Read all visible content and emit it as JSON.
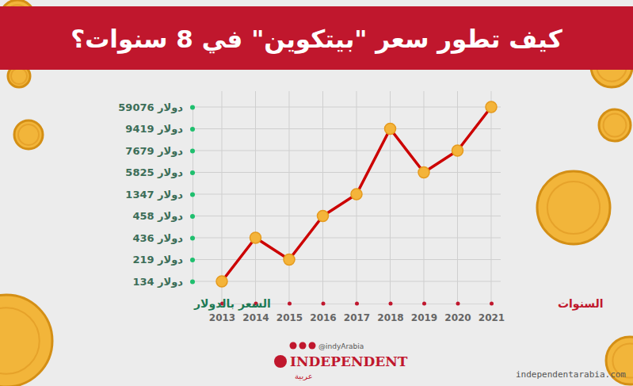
{
  "chart_data": {
    "type": "line",
    "title": "كيف تطور سعر \"بيتكوين\" في 8 سنوات؟",
    "x_label": "السنوات",
    "y_label": "السعر بالدولار",
    "categories": [
      "2013",
      "2014",
      "2015",
      "2016",
      "2017",
      "2018",
      "2019",
      "2020",
      "2021"
    ],
    "values": [
      134,
      436,
      219,
      458,
      1347,
      9419,
      5825,
      7679,
      59076
    ],
    "color": "#cc0000",
    "marker": "circle",
    "line_style": "solid",
    "grid": true,
    "yticks": [
      {
        "value": 134,
        "label": "134 دولار"
      },
      {
        "value": 219,
        "label": "219 دولار"
      },
      {
        "value": 436,
        "label": "436 دولار"
      },
      {
        "value": 458,
        "label": "458 دولار"
      },
      {
        "value": 1347,
        "label": "1347 دولار"
      },
      {
        "value": 5825,
        "label": "5825 دولار"
      },
      {
        "value": 7679,
        "label": "7679 دولار"
      },
      {
        "value": 9419,
        "label": "9419 دولار"
      },
      {
        "value": 59076,
        "label": "59076 دولار"
      }
    ],
    "annotations": [
      "@indyArabia",
      "INDEPENDENT",
      "عربية",
      "independentarabia.com"
    ]
  }
}
